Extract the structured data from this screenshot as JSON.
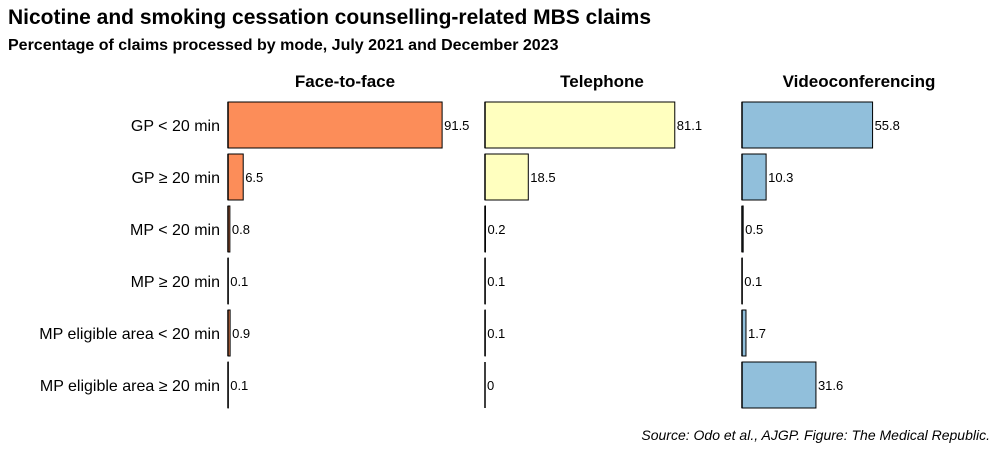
{
  "title": "Nicotine and smoking cessation counselling-related MBS claims",
  "subtitle": "Percentage of claims processed by mode, July 2021 and December 2023",
  "source": "Source: Odo et al., AJGP. Figure: The Medical Republic.",
  "colors": {
    "face_to_face": "#fc8d59",
    "telephone": "#ffffbf",
    "videoconferencing": "#91bfdb",
    "outline": "#000000"
  },
  "chart_data": {
    "type": "bar",
    "orientation": "horizontal",
    "facets": [
      "Face-to-face",
      "Telephone",
      "Videoconferencing"
    ],
    "categories": [
      "GP < 20 min",
      "GP ≥ 20 min",
      "MP < 20 min",
      "MP ≥ 20 min",
      "MP eligible area < 20 min",
      "MP eligible area ≥ 20 min"
    ],
    "series": [
      {
        "name": "Face-to-face",
        "values": [
          91.5,
          6.5,
          0.8,
          0.1,
          0.9,
          0.1
        ]
      },
      {
        "name": "Telephone",
        "values": [
          81.1,
          18.5,
          0.2,
          0.1,
          0.1,
          0
        ]
      },
      {
        "name": "Videoconferencing",
        "values": [
          55.8,
          10.3,
          0.5,
          0.1,
          1.7,
          31.6
        ]
      }
    ],
    "xlim": [
      0,
      100
    ],
    "grid": false,
    "legend": "none"
  }
}
